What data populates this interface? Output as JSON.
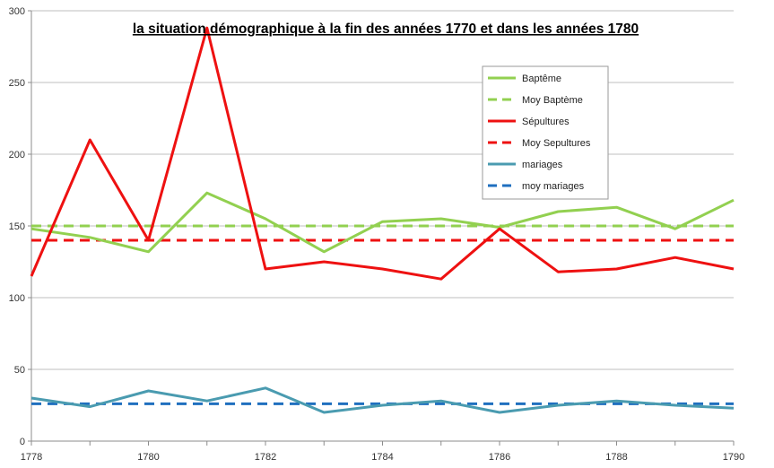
{
  "chart_data": {
    "type": "line",
    "title": "la situation démographique à la fin des années 1770 et dans les années 1780",
    "xlabel": "",
    "ylabel": "",
    "xlim": [
      1778,
      1790
    ],
    "ylim": [
      0,
      300
    ],
    "x_ticks": [
      1778,
      1780,
      1782,
      1784,
      1786,
      1788,
      1790
    ],
    "y_ticks": [
      0,
      50,
      100,
      150,
      200,
      250,
      300
    ],
    "grid": "horizontal",
    "legend_position": "top-right",
    "x": [
      1778,
      1779,
      1780,
      1781,
      1782,
      1783,
      1784,
      1785,
      1786,
      1787,
      1788,
      1789,
      1790
    ],
    "series": [
      {
        "name": "Baptême",
        "color": "#92d050",
        "dashed": false,
        "values": [
          148,
          142,
          132,
          173,
          155,
          132,
          153,
          155,
          149,
          160,
          163,
          148,
          168
        ]
      },
      {
        "name": "Moy Baptème",
        "color": "#92d050",
        "dashed": true,
        "values": [
          150,
          150,
          150,
          150,
          150,
          150,
          150,
          150,
          150,
          150,
          150,
          150,
          150
        ]
      },
      {
        "name": "Sépultures",
        "color": "#ee1111",
        "dashed": false,
        "values": [
          115,
          210,
          140,
          288,
          120,
          125,
          120,
          113,
          148,
          118,
          120,
          128,
          120
        ]
      },
      {
        "name": "Moy Sepultures",
        "color": "#ee1111",
        "dashed": true,
        "values": [
          140,
          140,
          140,
          140,
          140,
          140,
          140,
          140,
          140,
          140,
          140,
          140,
          140
        ]
      },
      {
        "name": "mariages",
        "color": "#4a9bb0",
        "dashed": false,
        "values": [
          30,
          24,
          35,
          28,
          37,
          20,
          25,
          28,
          20,
          25,
          28,
          25,
          23
        ]
      },
      {
        "name": "moy mariages",
        "color": "#1f6fbf",
        "dashed": true,
        "values": [
          26,
          26,
          26,
          26,
          26,
          26,
          26,
          26,
          26,
          26,
          26,
          26,
          26
        ]
      }
    ]
  }
}
